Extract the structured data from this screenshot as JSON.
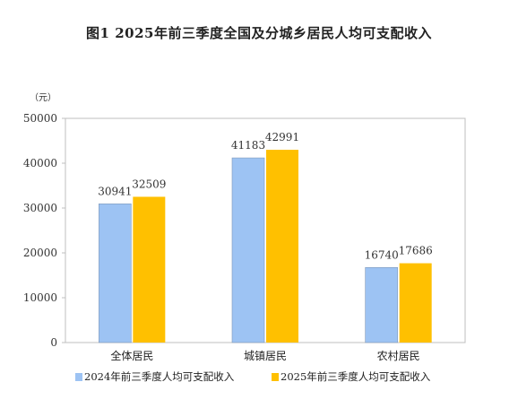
{
  "chart_data": {
    "type": "bar",
    "title": "图1    2025年前三季度全国及分城乡居民人均可支配收入",
    "unit": "（元）",
    "categories": [
      "全体居民",
      "城镇居民",
      "农村居民"
    ],
    "series": [
      {
        "name": "2024年前三季度人均可支配收入",
        "values": [
          30941,
          41183,
          16740
        ],
        "color": "#9dc3f3"
      },
      {
        "name": "2025年前三季度人均可支配收入",
        "values": [
          32509,
          42991,
          17686
        ],
        "color": "#ffc000"
      }
    ],
    "ylim": [
      0,
      50000
    ],
    "yticks": [
      "0",
      "10000",
      "20000",
      "30000",
      "40000",
      "50000"
    ],
    "grid": false,
    "legend_position": "bottom"
  }
}
